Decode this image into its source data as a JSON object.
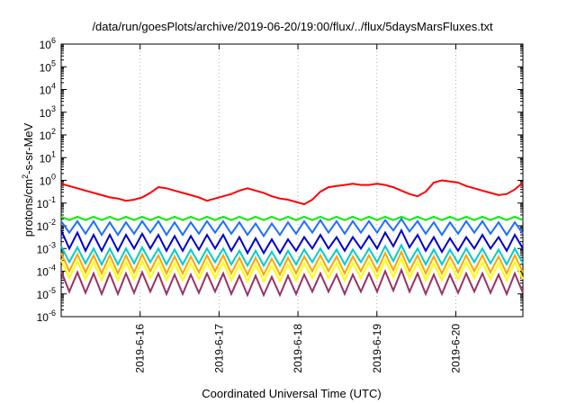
{
  "chart_data": {
    "type": "line",
    "title": "/data/run/goesPlots/archive/2019-06-20/19:00/flux/../flux/5daysMarsFluxes.txt",
    "xlabel": "Coordinated Universal Time (UTC)",
    "ylabel_parts": [
      "protons/cm",
      "2",
      "-s-sr-MeV"
    ],
    "y_scale": "log",
    "ylim_exp": [
      -6,
      6
    ],
    "y_ticks": [
      {
        "base": "10",
        "exp": "-6"
      },
      {
        "base": "10",
        "exp": "-5"
      },
      {
        "base": "10",
        "exp": "-4"
      },
      {
        "base": "10",
        "exp": "-3"
      },
      {
        "base": "10",
        "exp": "-2"
      },
      {
        "base": "10",
        "exp": "-1"
      },
      {
        "base": "10",
        "exp": "0"
      },
      {
        "base": "10",
        "exp": "1"
      },
      {
        "base": "10",
        "exp": "2"
      },
      {
        "base": "10",
        "exp": "3"
      },
      {
        "base": "10",
        "exp": "4"
      },
      {
        "base": "10",
        "exp": "5"
      },
      {
        "base": "10",
        "exp": "6"
      }
    ],
    "xlim_days": [
      15.0,
      20.85
    ],
    "x_ticks": [
      {
        "day": 16,
        "label": "2019-6-16"
      },
      {
        "day": 17,
        "label": "2019-6-17"
      },
      {
        "day": 18,
        "label": "2019-6-18"
      },
      {
        "day": 19,
        "label": "2019-6-19"
      },
      {
        "day": 20,
        "label": "2019-6-20"
      }
    ],
    "grid": "vertical dotted at x ticks",
    "series": [
      {
        "color": "#ff0000",
        "values_log10": [
          -0.15,
          -0.25,
          -0.35,
          -0.45,
          -0.55,
          -0.65,
          -0.75,
          -0.8,
          -0.9,
          -0.85,
          -0.75,
          -0.55,
          -0.3,
          -0.35,
          -0.45,
          -0.55,
          -0.65,
          -0.75,
          -0.9,
          -0.8,
          -0.7,
          -0.6,
          -0.45,
          -0.35,
          -0.45,
          -0.55,
          -0.7,
          -0.8,
          -0.85,
          -0.95,
          -1.05,
          -0.85,
          -0.5,
          -0.3,
          -0.25,
          -0.2,
          -0.15,
          -0.2,
          -0.2,
          -0.15,
          -0.2,
          -0.3,
          -0.45,
          -0.6,
          -0.7,
          -0.5,
          -0.1,
          0.0,
          -0.05,
          -0.1,
          -0.25,
          -0.35,
          -0.45,
          -0.55,
          -0.65,
          -0.6,
          -0.4,
          -0.1
        ]
      },
      {
        "color": "#00ee00",
        "values_log10": [
          -1.6,
          -1.75,
          -1.6,
          -1.75,
          -1.6,
          -1.75,
          -1.6,
          -1.75,
          -1.6,
          -1.75,
          -1.6,
          -1.75,
          -1.6,
          -1.75,
          -1.6,
          -1.75,
          -1.6,
          -1.75,
          -1.6,
          -1.75,
          -1.6,
          -1.75,
          -1.6,
          -1.75,
          -1.6,
          -1.75,
          -1.6,
          -1.75,
          -1.6,
          -1.75,
          -1.6,
          -1.75,
          -1.6,
          -1.75,
          -1.6,
          -1.75,
          -1.6,
          -1.75,
          -1.6,
          -1.75,
          -1.6,
          -1.75,
          -1.6,
          -1.75,
          -1.6,
          -1.75,
          -1.6,
          -1.75,
          -1.6,
          -1.75,
          -1.6,
          -1.75,
          -1.6,
          -1.75,
          -1.6,
          -1.75,
          -1.6,
          -1.75
        ]
      },
      {
        "color": "#1e6fff",
        "values_log10": [
          -1.8,
          -2.3,
          -1.8,
          -2.35,
          -1.8,
          -2.4,
          -1.85,
          -2.4,
          -1.85,
          -2.35,
          -1.8,
          -2.3,
          -1.8,
          -2.4,
          -1.85,
          -2.4,
          -1.85,
          -2.35,
          -1.8,
          -2.3,
          -1.8,
          -2.35,
          -1.85,
          -2.4,
          -1.9,
          -2.45,
          -1.9,
          -2.4,
          -1.85,
          -2.35,
          -1.8,
          -2.3,
          -1.75,
          -2.3,
          -1.8,
          -2.35,
          -1.8,
          -2.3,
          -1.8,
          -2.3,
          -1.75,
          -2.2,
          -1.7,
          -2.25,
          -1.8,
          -2.35,
          -1.85,
          -2.4,
          -1.85,
          -2.35,
          -1.8,
          -2.3,
          -1.8,
          -2.35,
          -1.85,
          -2.4,
          -1.85,
          -2.35
        ]
      },
      {
        "color": "#0000cc",
        "values_log10": [
          -2.2,
          -3.0,
          -2.3,
          -3.1,
          -2.4,
          -3.1,
          -2.4,
          -3.1,
          -2.4,
          -3.0,
          -2.35,
          -3.0,
          -2.4,
          -3.1,
          -2.45,
          -3.1,
          -2.45,
          -3.05,
          -2.4,
          -3.0,
          -2.4,
          -3.1,
          -2.5,
          -3.2,
          -2.55,
          -3.2,
          -2.6,
          -3.2,
          -2.6,
          -3.1,
          -2.5,
          -3.0,
          -2.4,
          -3.0,
          -2.5,
          -3.1,
          -2.5,
          -3.0,
          -2.45,
          -3.0,
          -2.3,
          -2.9,
          -2.2,
          -2.95,
          -2.4,
          -3.1,
          -2.5,
          -3.15,
          -2.55,
          -3.1,
          -2.5,
          -3.0,
          -2.4,
          -3.0,
          -2.5,
          -3.1,
          -2.4,
          -3.0
        ]
      },
      {
        "color": "#00cccc",
        "values_log10": [
          -2.9,
          -3.6,
          -2.95,
          -3.65,
          -3.0,
          -3.7,
          -3.0,
          -3.7,
          -3.0,
          -3.65,
          -2.95,
          -3.6,
          -3.0,
          -3.7,
          -3.05,
          -3.7,
          -3.05,
          -3.65,
          -3.0,
          -3.6,
          -3.0,
          -3.7,
          -3.1,
          -3.75,
          -3.1,
          -3.75,
          -3.15,
          -3.75,
          -3.1,
          -3.7,
          -3.05,
          -3.6,
          -3.0,
          -3.6,
          -3.05,
          -3.7,
          -3.05,
          -3.6,
          -3.0,
          -3.6,
          -2.9,
          -3.55,
          -2.85,
          -3.6,
          -3.0,
          -3.7,
          -3.05,
          -3.7,
          -3.05,
          -3.65,
          -3.0,
          -3.6,
          -3.0,
          -3.65,
          -3.05,
          -3.7,
          -3.0,
          -3.65
        ]
      },
      {
        "color": "#ffa500",
        "values_log10": [
          -3.2,
          -4.0,
          -3.25,
          -4.05,
          -3.3,
          -4.1,
          -3.3,
          -4.1,
          -3.3,
          -4.05,
          -3.25,
          -4.0,
          -3.3,
          -4.1,
          -3.35,
          -4.1,
          -3.35,
          -4.05,
          -3.3,
          -4.0,
          -3.3,
          -4.1,
          -3.4,
          -4.15,
          -3.4,
          -4.15,
          -3.45,
          -4.15,
          -3.4,
          -4.1,
          -3.35,
          -4.0,
          -3.3,
          -4.0,
          -3.35,
          -4.1,
          -3.35,
          -4.0,
          -3.3,
          -4.0,
          -3.2,
          -3.95,
          -3.15,
          -4.0,
          -3.3,
          -4.1,
          -3.35,
          -4.1,
          -3.35,
          -4.05,
          -3.3,
          -4.0,
          -3.3,
          -4.05,
          -3.35,
          -4.1,
          -3.3,
          -4.05
        ]
      },
      {
        "color": "#ffff00",
        "values_log10": [
          -3.5,
          -4.3,
          -3.55,
          -4.35,
          -3.6,
          -4.4,
          -3.6,
          -4.4,
          -3.6,
          -4.35,
          -3.55,
          -4.3,
          -3.6,
          -4.4,
          -3.65,
          -4.4,
          -3.65,
          -4.35,
          -3.6,
          -4.3,
          -3.6,
          -4.4,
          -3.7,
          -4.45,
          -3.7,
          -4.45,
          -3.75,
          -4.45,
          -3.7,
          -4.4,
          -3.65,
          -4.3,
          -3.6,
          -4.3,
          -3.65,
          -4.4,
          -3.65,
          -4.3,
          -3.6,
          -4.3,
          -3.5,
          -4.25,
          -3.45,
          -4.3,
          -3.6,
          -4.4,
          -3.65,
          -4.4,
          -3.65,
          -4.35,
          -3.6,
          -4.3,
          -3.6,
          -4.35,
          -3.65,
          -4.4,
          -3.6,
          -4.35
        ]
      },
      {
        "color": "#993366",
        "values_log10": [
          -4.0,
          -4.9,
          -4.05,
          -4.95,
          -4.1,
          -5.0,
          -4.1,
          -5.0,
          -4.1,
          -4.95,
          -4.05,
          -4.9,
          -4.1,
          -5.0,
          -4.15,
          -5.0,
          -4.15,
          -4.95,
          -4.1,
          -4.9,
          -4.1,
          -5.0,
          -4.2,
          -5.05,
          -4.2,
          -5.05,
          -4.25,
          -5.05,
          -4.2,
          -5.0,
          -4.15,
          -4.9,
          -4.1,
          -4.9,
          -4.15,
          -5.0,
          -4.15,
          -4.9,
          -4.1,
          -4.9,
          -4.0,
          -4.85,
          -3.95,
          -4.9,
          -4.1,
          -5.0,
          -4.15,
          -5.0,
          -4.15,
          -4.95,
          -4.1,
          -4.9,
          -4.1,
          -4.95,
          -4.15,
          -5.0,
          -4.1,
          -4.95
        ]
      }
    ]
  }
}
